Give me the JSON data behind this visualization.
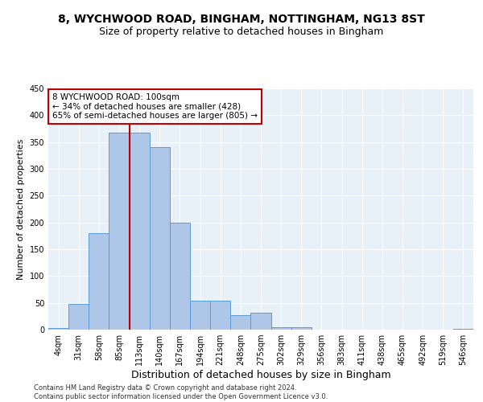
{
  "title1": "8, WYCHWOOD ROAD, BINGHAM, NOTTINGHAM, NG13 8ST",
  "title2": "Size of property relative to detached houses in Bingham",
  "xlabel": "Distribution of detached houses by size in Bingham",
  "ylabel": "Number of detached properties",
  "bin_labels": [
    "4sqm",
    "31sqm",
    "58sqm",
    "85sqm",
    "113sqm",
    "140sqm",
    "167sqm",
    "194sqm",
    "221sqm",
    "248sqm",
    "275sqm",
    "302sqm",
    "329sqm",
    "356sqm",
    "383sqm",
    "411sqm",
    "438sqm",
    "465sqm",
    "492sqm",
    "519sqm",
    "546sqm"
  ],
  "bar_heights": [
    3,
    48,
    180,
    368,
    368,
    340,
    199,
    54,
    54,
    27,
    31,
    5,
    5,
    0,
    0,
    0,
    0,
    0,
    0,
    0,
    2
  ],
  "bar_color": "#aec6e8",
  "bar_edge_color": "#5b9bd5",
  "vline_color": "#c00000",
  "vline_x": 3.5,
  "annotation_text": "8 WYCHWOOD ROAD: 100sqm\n← 34% of detached houses are smaller (428)\n65% of semi-detached houses are larger (805) →",
  "annotation_box_color": "#ffffff",
  "annotation_box_edge": "#c00000",
  "ylim": [
    0,
    450
  ],
  "yticks": [
    0,
    50,
    100,
    150,
    200,
    250,
    300,
    350,
    400,
    450
  ],
  "bg_color": "#e8f0f8",
  "footer": "Contains HM Land Registry data © Crown copyright and database right 2024.\nContains public sector information licensed under the Open Government Licence v3.0.",
  "title1_fontsize": 10,
  "title2_fontsize": 9,
  "xlabel_fontsize": 9,
  "ylabel_fontsize": 8,
  "tick_fontsize": 7,
  "annotation_fontsize": 7.5,
  "footer_fontsize": 6
}
